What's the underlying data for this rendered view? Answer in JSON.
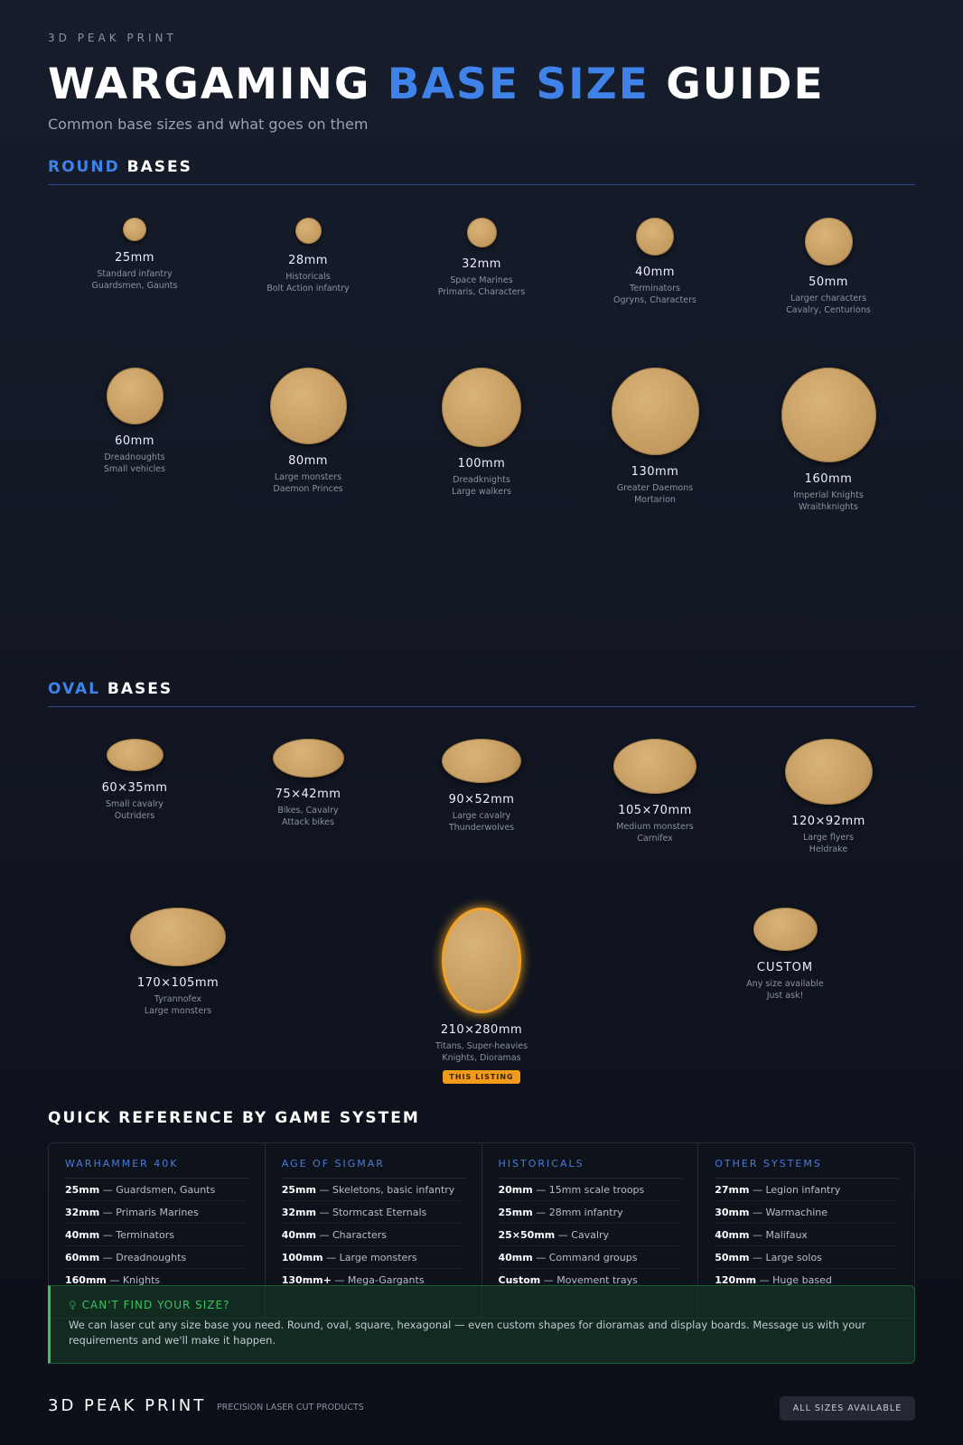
{
  "header": {
    "brand": "3D PEAK PRINT",
    "title_part1": "WARGAMING ",
    "title_accent": "BASE SIZE",
    "title_part2": " GUIDE",
    "subtitle": "Common base sizes and what goes on them"
  },
  "round": {
    "title_accent": "ROUND",
    "title_rest": " BASES",
    "items": [
      {
        "size": "25mm",
        "desc1": "Standard infantry",
        "desc2": "Guardsmen, Gaunts"
      },
      {
        "size": "28mm",
        "desc1": "Historicals",
        "desc2": "Bolt Action infantry"
      },
      {
        "size": "32mm",
        "desc1": "Space Marines",
        "desc2": "Primaris, Characters"
      },
      {
        "size": "40mm",
        "desc1": "Terminators",
        "desc2": "Ogryns, Characters"
      },
      {
        "size": "50mm",
        "desc1": "Larger characters",
        "desc2": "Cavalry, Centurions"
      },
      {
        "size": "60mm",
        "desc1": "Dreadnoughts",
        "desc2": "Small vehicles"
      },
      {
        "size": "80mm",
        "desc1": "Large monsters",
        "desc2": "Daemon Princes"
      },
      {
        "size": "100mm",
        "desc1": "Dreadknights",
        "desc2": "Large walkers"
      },
      {
        "size": "130mm",
        "desc1": "Greater Daemons",
        "desc2": "Mortarion"
      },
      {
        "size": "160mm",
        "desc1": "Imperial Knights",
        "desc2": "Wraithknights"
      }
    ]
  },
  "oval": {
    "title_accent": "OVAL",
    "title_rest": " BASES",
    "items": [
      {
        "size": "60×35mm",
        "desc1": "Small cavalry",
        "desc2": "Outriders"
      },
      {
        "size": "75×42mm",
        "desc1": "Bikes, Cavalry",
        "desc2": "Attack bikes"
      },
      {
        "size": "90×52mm",
        "desc1": "Large cavalry",
        "desc2": "Thunderwolves"
      },
      {
        "size": "105×70mm",
        "desc1": "Medium monsters",
        "desc2": "Carnifex"
      },
      {
        "size": "120×92mm",
        "desc1": "Large flyers",
        "desc2": "Heldrake"
      },
      {
        "size": "170×105mm",
        "desc1": "Tyrannofex",
        "desc2": "Large monsters"
      },
      {
        "size": "210×280mm",
        "desc1": "Titans, Super-heavies",
        "desc2": "Knights, Dioramas",
        "badge": "THIS LISTING",
        "highlight": true
      },
      {
        "size": "CUSTOM",
        "desc1": "Any size available",
        "desc2": "Just ask!"
      }
    ]
  },
  "quick_ref": {
    "title": "QUICK REFERENCE BY GAME SYSTEM",
    "columns": [
      {
        "header": "WARHAMMER 40K",
        "rows": [
          [
            "25mm",
            "Guardsmen, Gaunts"
          ],
          [
            "32mm",
            "Primaris Marines"
          ],
          [
            "40mm",
            "Terminators"
          ],
          [
            "60mm",
            "Dreadnoughts"
          ],
          [
            "160mm",
            "Knights"
          ]
        ]
      },
      {
        "header": "AGE OF SIGMAR",
        "rows": [
          [
            "25mm",
            "Skeletons, basic infantry"
          ],
          [
            "32mm",
            "Stormcast Eternals"
          ],
          [
            "40mm",
            "Characters"
          ],
          [
            "100mm",
            "Large monsters"
          ],
          [
            "130mm+",
            "Mega-Gargants"
          ]
        ]
      },
      {
        "header": "HISTORICALS",
        "rows": [
          [
            "20mm",
            "15mm scale troops"
          ],
          [
            "25mm",
            "28mm infantry"
          ],
          [
            "25×50mm",
            "Cavalry"
          ],
          [
            "40mm",
            "Command groups"
          ],
          [
            "Custom",
            "Movement trays"
          ]
        ]
      },
      {
        "header": "OTHER SYSTEMS",
        "rows": [
          [
            "27mm",
            "Legion infantry"
          ],
          [
            "30mm",
            "Warmachine"
          ],
          [
            "40mm",
            "Malifaux"
          ],
          [
            "50mm",
            "Large solos"
          ],
          [
            "120mm",
            "Huge based"
          ]
        ]
      }
    ]
  },
  "callout": {
    "icon": "lightbulb-icon",
    "title": "CAN'T FIND YOUR SIZE?",
    "text": "We can laser cut any size base you need. Round, oval, square, hexagonal — even custom shapes for dioramas and display boards. Message us with your requirements and we'll make it happen."
  },
  "footer": {
    "brand": "3D PEAK PRINT",
    "tagline": "PRECISION LASER CUT PRODUCTS",
    "button": "ALL SIZES AVAILABLE"
  },
  "colors": {
    "accent": "#3f82ea",
    "base": "#c9a366",
    "highlight": "#f29a1a",
    "callout": "#3cc060"
  }
}
